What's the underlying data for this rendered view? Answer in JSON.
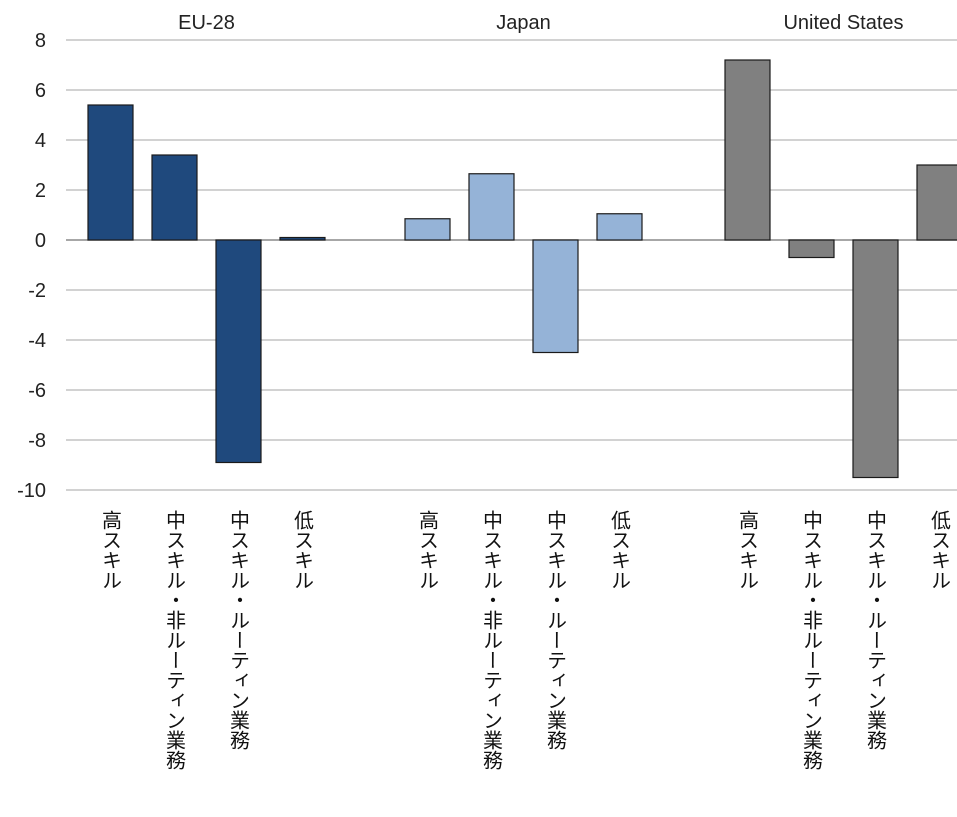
{
  "chart_data": {
    "type": "bar",
    "title": "",
    "xlabel": "",
    "ylabel": "",
    "ylim": [
      -10,
      8
    ],
    "yticks": [
      8,
      6,
      4,
      2,
      0,
      -2,
      -4,
      -6,
      -8,
      -10
    ],
    "ytick_labels": [
      "8",
      "6",
      "4",
      "2",
      "0",
      "-2",
      "-4",
      "-6",
      "-8",
      "-10"
    ],
    "grid": true,
    "legend": "none",
    "categories": [
      "高スキル",
      "中スキル・非ルーティン業務",
      "中スキル・ルーティン業務",
      "低スキル"
    ],
    "groups": [
      {
        "name": "EU-28",
        "color": "#1f497d",
        "values": [
          5.4,
          3.4,
          -8.9,
          0.1
        ]
      },
      {
        "name": "Japan",
        "color": "#95b3d7",
        "values": [
          0.85,
          2.65,
          -4.5,
          1.05
        ]
      },
      {
        "name": "United States",
        "color": "#808080",
        "values": [
          7.2,
          -0.7,
          -9.5,
          3.0
        ]
      }
    ]
  }
}
